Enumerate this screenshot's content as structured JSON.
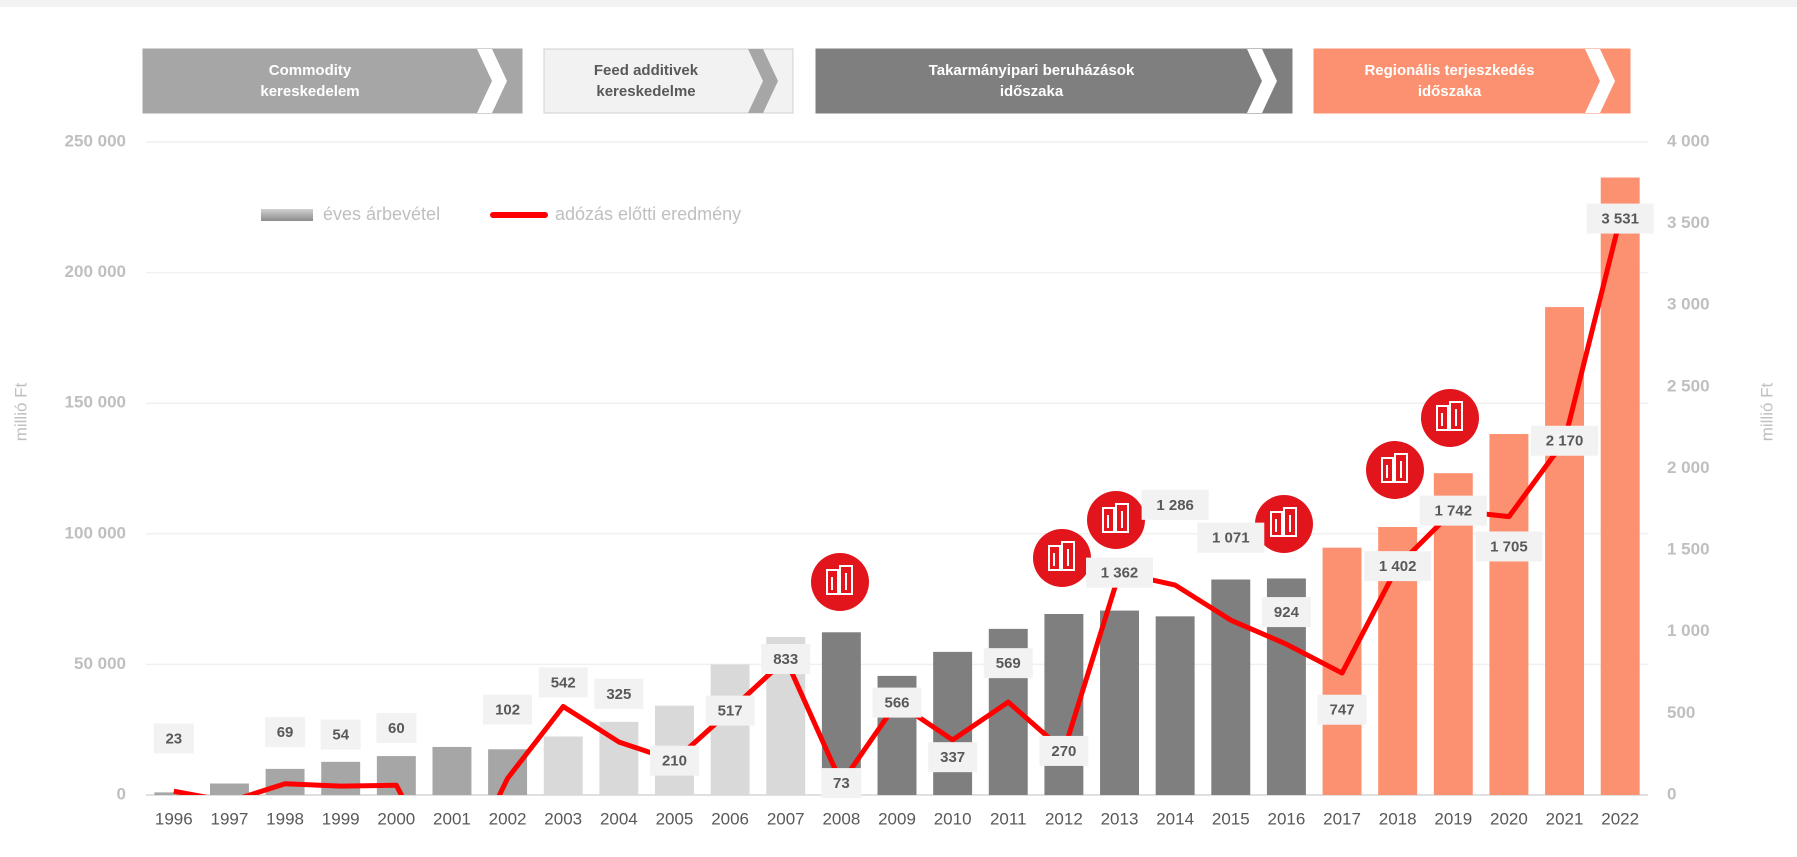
{
  "chart_data": {
    "type": "bar_line",
    "categories": [
      "1996",
      "1997",
      "1998",
      "1999",
      "2000",
      "2001",
      "2002",
      "2003",
      "2004",
      "2005",
      "2006",
      "2007",
      "2008",
      "2009",
      "2010",
      "2011",
      "2012",
      "2013",
      "2014",
      "2015",
      "2016",
      "2017",
      "2018",
      "2019",
      "2020",
      "2021",
      "2022"
    ],
    "series": [
      {
        "name": "éves árbevétel",
        "type": "bar",
        "axis": "y",
        "colors": [
          "#a6a6a6",
          "#a6a6a6",
          "#a6a6a6",
          "#a6a6a6",
          "#a6a6a6",
          "#a6a6a6",
          "#a6a6a6",
          "#d9d9d9",
          "#d9d9d9",
          "#d9d9d9",
          "#d9d9d9",
          "#d9d9d9",
          "#7f7f7f",
          "#7f7f7f",
          "#7f7f7f",
          "#7f7f7f",
          "#7f7f7f",
          "#7f7f7f",
          "#7f7f7f",
          "#7f7f7f",
          "#7f7f7f",
          "#fb9170",
          "#fb9170",
          "#fb9170",
          "#fb9170",
          "#fb9170",
          "#fb9170"
        ],
        "values": [
          1000,
          4400,
          10000,
          12700,
          14900,
          18400,
          17500,
          22400,
          28000,
          34200,
          50000,
          60500,
          62300,
          45600,
          54800,
          63600,
          69300,
          70600,
          68400,
          82500,
          82900,
          94700,
          102600,
          123200,
          138200,
          186800,
          236400
        ]
      },
      {
        "name": "adózás előtti eredmény",
        "type": "line",
        "axis": "y2",
        "color": "#ff0000",
        "values": [
          23,
          -40,
          69,
          54,
          60,
          -600,
          102,
          542,
          325,
          210,
          517,
          833,
          73,
          566,
          337,
          569,
          270,
          1362,
          1286,
          1071,
          924,
          747,
          1402,
          1742,
          1705,
          2170,
          3531
        ],
        "value_labels": [
          "23",
          null,
          "69",
          "54",
          "60",
          null,
          "102",
          "542",
          "325",
          "210",
          "517",
          "833",
          "73",
          "566",
          "337",
          "569",
          "270",
          "1 362",
          "1 286",
          "1 071",
          "924",
          "747",
          "1 402",
          "1 742",
          "1 705",
          "2 170",
          "3 531"
        ]
      }
    ],
    "ylabel": "millió Ft",
    "y2label": "millió Ft",
    "ylim": [
      0,
      250000
    ],
    "yticks": [
      0,
      {
        "value": 50000,
        "label": "50 000"
      },
      {
        "value": 100000,
        "label": "100 000"
      },
      {
        "value": 150000,
        "label": "150 000"
      },
      {
        "value": 200000,
        "label": "200 000"
      },
      {
        "value": 250000,
        "label": "250 000"
      }
    ],
    "y2lim": [
      0,
      4000
    ],
    "y2ticks": [
      0,
      500,
      {
        "value": 1000,
        "label": "1 000"
      },
      {
        "value": 1500,
        "label": "1 500"
      },
      {
        "value": 2000,
        "label": "2 000"
      },
      {
        "value": 2500,
        "label": "2 500"
      },
      {
        "value": 3000,
        "label": "3 000"
      },
      {
        "value": 3500,
        "label": "3 500"
      },
      {
        "value": 4000,
        "label": "4 000"
      }
    ],
    "grid": true,
    "phases": [
      {
        "lines": [
          "Commodity",
          "kereskedelem"
        ],
        "color": "#a6a6a6"
      },
      {
        "lines": [
          "Feed additivek",
          "kereskedelme"
        ],
        "color": "#f2f2f2"
      },
      {
        "lines": [
          "Takarmányipari beruházások",
          "időszaka"
        ],
        "color": "#7f7f7f"
      },
      {
        "lines": [
          "Regionális terjeszkedés",
          "időszaka"
        ],
        "color": "#fb9170"
      }
    ]
  }
}
